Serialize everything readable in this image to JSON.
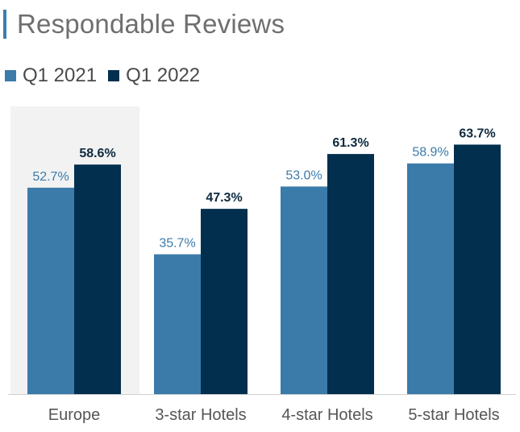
{
  "title": "Respondable Reviews",
  "colors": {
    "accent": "#3b7fb0",
    "q1_2021": "#3b7baa",
    "q1_2022": "#032f4f",
    "highlight_bg": "#f2f2f2",
    "label_2021": "#3b7baa",
    "label_2022": "#0e2a3f",
    "category_text": "#555555"
  },
  "chart_data": {
    "type": "bar",
    "categories": [
      "Europe",
      "3-star Hotels",
      "4-star Hotels",
      "5-star Hotels"
    ],
    "series": [
      {
        "name": "Q1 2021",
        "values": [
          52.7,
          35.7,
          53.0,
          58.9
        ],
        "labels": [
          "52.7%",
          "35.7%",
          "53.0%",
          "58.9%"
        ]
      },
      {
        "name": "Q1 2022",
        "values": [
          58.6,
          47.3,
          61.3,
          63.7
        ],
        "labels": [
          "58.6%",
          "47.3%",
          "61.3%",
          "63.7%"
        ]
      }
    ],
    "ylim": [
      0,
      70
    ],
    "highlighted_category": "Europe",
    "legend_position": "top-left",
    "grid": false
  }
}
